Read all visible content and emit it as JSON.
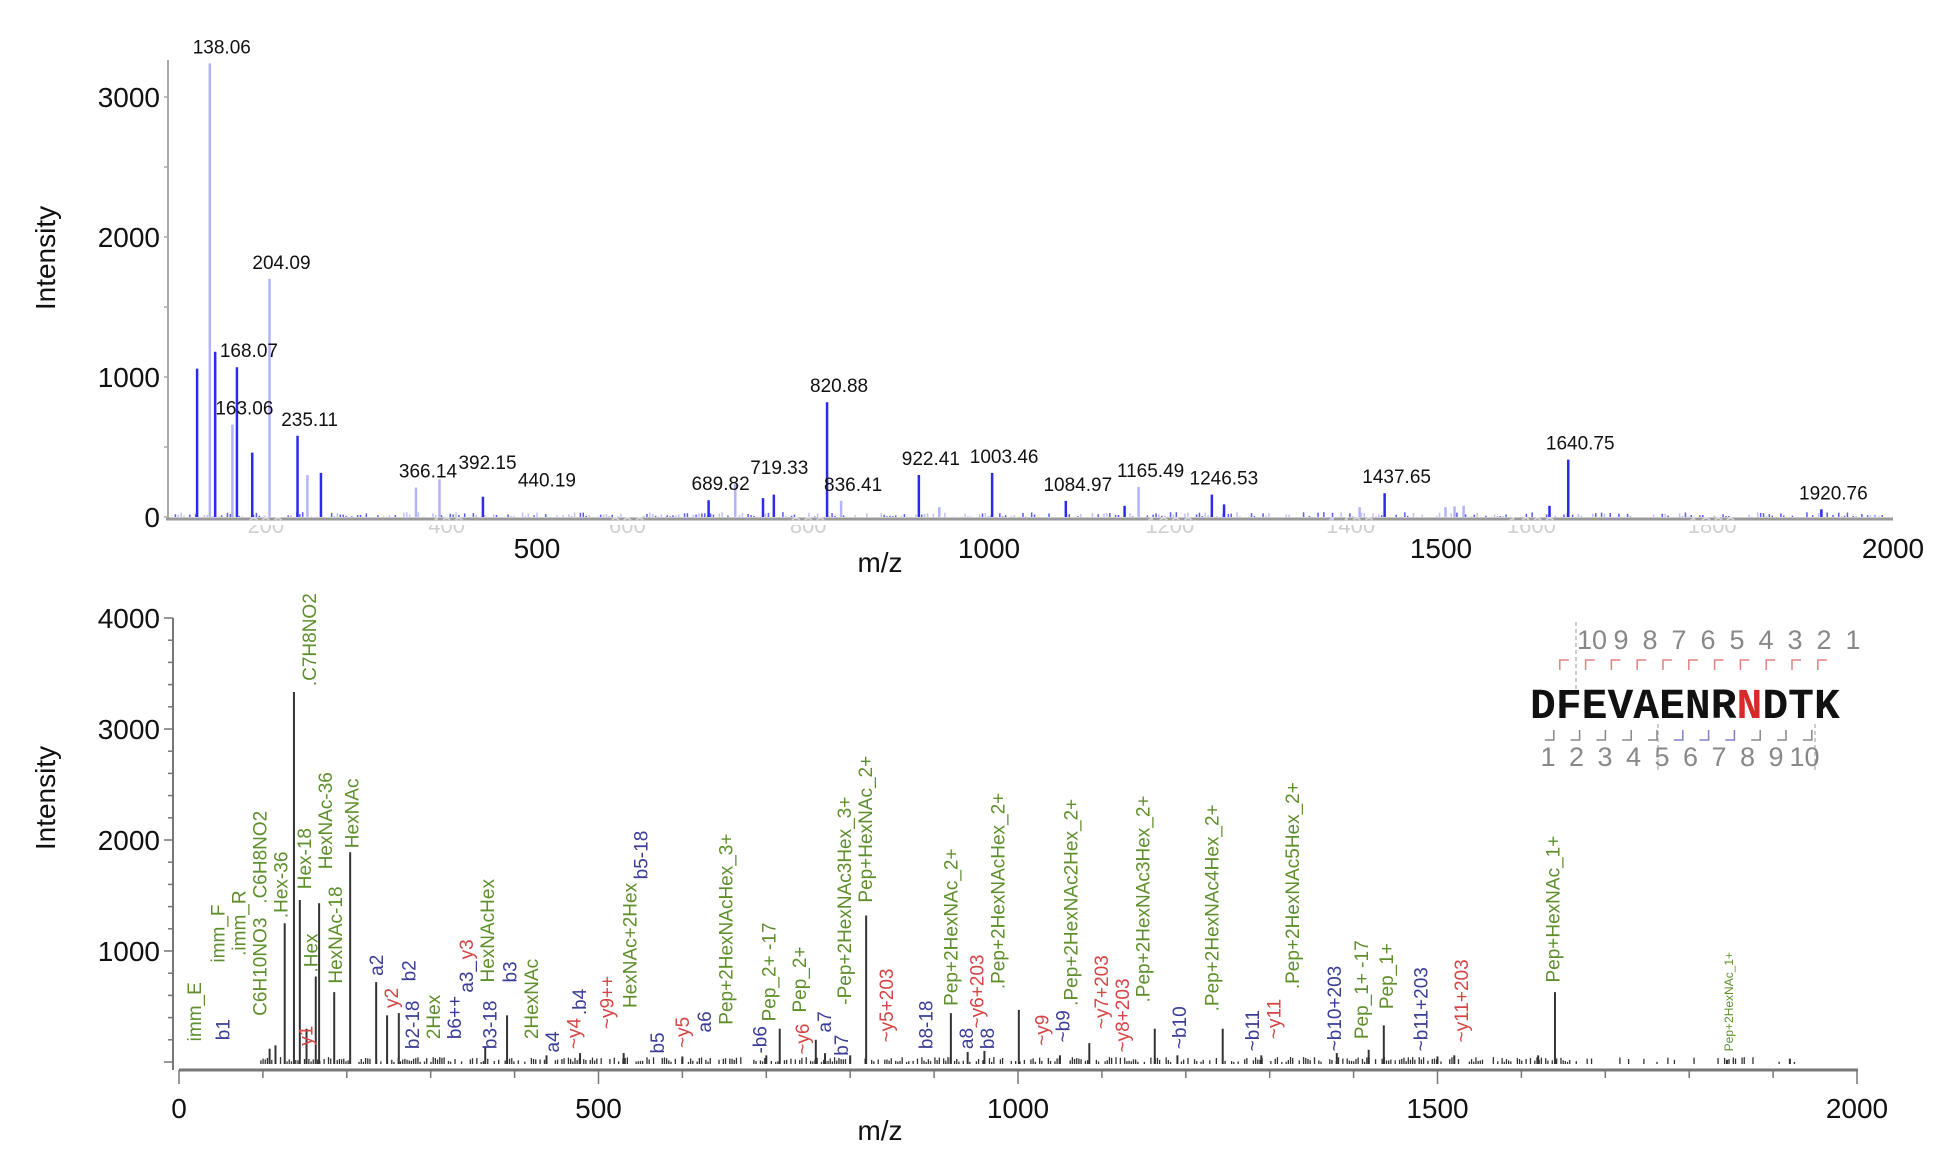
{
  "chart_data": [
    {
      "type": "bar",
      "title": "",
      "xlabel": "m/z",
      "ylabel": "Intensity",
      "xlim": [
        92,
        2000
      ],
      "ylim": [
        0,
        3250
      ],
      "xticks": [
        "500",
        "1000",
        "1500",
        "2000"
      ],
      "xtick_values": [
        500,
        1000,
        1500,
        2000
      ],
      "faint_xticks": [
        "200",
        "400",
        "600",
        "800",
        "1200",
        "1400",
        "1600",
        "1800"
      ],
      "faint_xtick_values": [
        200,
        400,
        600,
        800,
        1200,
        1400,
        1600,
        1800
      ],
      "yticks": [
        "0",
        "1000",
        "2000",
        "3000"
      ],
      "ytick_values": [
        0,
        1000,
        2000,
        3000
      ],
      "series_colors": {
        "dark": "#2b2bf0",
        "light": "#b3b3fb"
      },
      "peaks": [
        [
          124,
          1060,
          "dark"
        ],
        [
          138.06,
          3240,
          "light"
        ],
        [
          144,
          1180,
          "dark"
        ],
        [
          163.06,
          660,
          "light"
        ],
        [
          168.07,
          1070,
          "dark"
        ],
        [
          185,
          460,
          "dark"
        ],
        [
          204.09,
          1700,
          "light"
        ],
        [
          235.11,
          580,
          "dark"
        ],
        [
          246,
          300,
          "light"
        ],
        [
          261,
          315,
          "dark"
        ],
        [
          366.14,
          210,
          "light"
        ],
        [
          392.15,
          270,
          "light"
        ],
        [
          440.19,
          145,
          "dark"
        ],
        [
          689.82,
          120,
          "dark"
        ],
        [
          719.33,
          235,
          "light"
        ],
        [
          750,
          135,
          "dark"
        ],
        [
          762,
          160,
          "dark"
        ],
        [
          820.88,
          820,
          "dark"
        ],
        [
          836.41,
          115,
          "light"
        ],
        [
          922.41,
          300,
          "dark"
        ],
        [
          945,
          70,
          "light"
        ],
        [
          1003.46,
          315,
          "dark"
        ],
        [
          1084.97,
          115,
          "dark"
        ],
        [
          1150,
          80,
          "dark"
        ],
        [
          1165.49,
          215,
          "light"
        ],
        [
          1246.53,
          160,
          "dark"
        ],
        [
          1260,
          90,
          "dark"
        ],
        [
          1410,
          70,
          "light"
        ],
        [
          1437.65,
          170,
          "dark"
        ],
        [
          1505,
          70,
          "light"
        ],
        [
          1515,
          75,
          "light"
        ],
        [
          1525,
          80,
          "light"
        ],
        [
          1620,
          80,
          "dark"
        ],
        [
          1640.75,
          410,
          "dark"
        ],
        [
          1920.76,
          55,
          "dark"
        ],
        [
          1980,
          15,
          "light"
        ]
      ],
      "peak_labels": [
        {
          "text": "138.06",
          "mz": 138.06,
          "y": 3240
        },
        {
          "text": "204.09",
          "mz": 204.09,
          "y": 1700
        },
        {
          "text": "168.07",
          "mz": 168.07,
          "y": 1070
        },
        {
          "text": "163.06",
          "mz": 163.06,
          "y": 660
        },
        {
          "text": "235.11",
          "mz": 235.11,
          "y": 580
        },
        {
          "text": "366.14",
          "mz": 366.14,
          "y": 210
        },
        {
          "text": "392.15",
          "mz": 392.15,
          "y": 270
        },
        {
          "text": "440.19",
          "mz": 440.19,
          "y": 145
        },
        {
          "text": "689.82",
          "mz": 689.82,
          "y": 120
        },
        {
          "text": "719.33",
          "mz": 719.33,
          "y": 235
        },
        {
          "text": "820.88",
          "mz": 820.88,
          "y": 820
        },
        {
          "text": "836.41",
          "mz": 836.41,
          "y": 115
        },
        {
          "text": "922.41",
          "mz": 922.41,
          "y": 300
        },
        {
          "text": "1003.46",
          "mz": 1003.46,
          "y": 315
        },
        {
          "text": "1084.97",
          "mz": 1084.97,
          "y": 115
        },
        {
          "text": "1165.49",
          "mz": 1165.49,
          "y": 215
        },
        {
          "text": "1246.53",
          "mz": 1246.53,
          "y": 160
        },
        {
          "text": "1437.65",
          "mz": 1437.65,
          "y": 170
        },
        {
          "text": "1640.75",
          "mz": 1640.75,
          "y": 410
        },
        {
          "text": "1920.76",
          "mz": 1920.76,
          "y": 55
        }
      ]
    },
    {
      "type": "bar",
      "title": "",
      "xlabel": "m/z",
      "ylabel": "Intensity",
      "xlim": [
        0,
        2000
      ],
      "ylim": [
        0,
        4000
      ],
      "xticks": [
        "0",
        "500",
        "1000",
        "1500",
        "2000"
      ],
      "xtick_values": [
        0,
        500,
        1000,
        1500,
        2000
      ],
      "yticks": [
        "1000",
        "2000",
        "3000",
        "4000"
      ],
      "ytick_values": [
        1000,
        2000,
        3000,
        4000
      ],
      "annotation_colors": {
        "glycan": "#5e8f2c",
        "b_a_ion": "#3b3d96",
        "y_ion": "#d64545"
      },
      "peaks": [
        [
          108,
          120
        ],
        [
          115,
          150
        ],
        [
          126,
          1250
        ],
        [
          137,
          3333
        ],
        [
          144,
          1460
        ],
        [
          152,
          300
        ],
        [
          163,
          770
        ],
        [
          167,
          1430
        ],
        [
          185,
          630
        ],
        [
          204,
          1890
        ],
        [
          235,
          720
        ],
        [
          248,
          420
        ],
        [
          262,
          440
        ],
        [
          365,
          140
        ],
        [
          391,
          420
        ],
        [
          438,
          60
        ],
        [
          478,
          80
        ],
        [
          530,
          80
        ],
        [
          600,
          50
        ],
        [
          700,
          60
        ],
        [
          716,
          300
        ],
        [
          759,
          200
        ],
        [
          770,
          80
        ],
        [
          800,
          60
        ],
        [
          819,
          1320
        ],
        [
          920,
          440
        ],
        [
          940,
          90
        ],
        [
          960,
          100
        ],
        [
          1001,
          470
        ],
        [
          1050,
          60
        ],
        [
          1085,
          170
        ],
        [
          1163,
          300
        ],
        [
          1190,
          60
        ],
        [
          1244,
          300
        ],
        [
          1290,
          60
        ],
        [
          1380,
          80
        ],
        [
          1418,
          110
        ],
        [
          1436,
          330
        ],
        [
          1500,
          50
        ],
        [
          1520,
          60
        ],
        [
          1620,
          60
        ],
        [
          1640,
          630
        ],
        [
          1845,
          20
        ],
        [
          1920,
          30
        ]
      ],
      "annotations": [
        {
          "text": "imm_E",
          "type": "g",
          "mz": 19,
          "y": 150
        },
        {
          "text": "b1",
          "type": "b",
          "mz": 53,
          "y": 160
        },
        {
          "text": "imm_F",
          "type": "g",
          "mz": 47,
          "y": 860
        },
        {
          "text": ".imm_R",
          "type": "g",
          "mz": 70,
          "y": 920
        },
        {
          "text": "C6H10NO3",
          "type": "g",
          "mz": 91,
          "y": 380
        },
        {
          "text": ".C6H8NO2",
          "type": "g",
          "mz": 89,
          "y": 1390
        },
        {
          "text": ".Hex-36",
          "type": "g",
          "mz": 120,
          "y": 1260
        },
        {
          "text": "y1",
          "type": "r",
          "mz": 152,
          "y": 110
        },
        {
          "text": ".C7H8NO2",
          "type": "g",
          "mz": 156,
          "y": 3350
        },
        {
          "text": "Hex-18",
          "type": "g",
          "mz": 150,
          "y": 1520
        },
        {
          "text": ".Hex",
          "type": "g",
          "mz": 158,
          "y": 770
        },
        {
          "text": "HexNAc-36",
          "type": "g",
          "mz": 174,
          "y": 1700
        },
        {
          "text": "HexNAc-18",
          "type": "g",
          "mz": 187,
          "y": 670
        },
        {
          "text": "HexNAc",
          "type": "g",
          "mz": 207,
          "y": 1890
        },
        {
          "text": "a2",
          "type": "b",
          "mz": 236,
          "y": 740
        },
        {
          "text": "y2",
          "type": "r",
          "mz": 254,
          "y": 450
        },
        {
          "text": "b2",
          "type": "b",
          "mz": 275,
          "y": 690
        },
        {
          "text": "b2-18",
          "type": "b",
          "mz": 279,
          "y": 80
        },
        {
          "text": "2Hex",
          "type": "g",
          "mz": 303,
          "y": 170
        },
        {
          "text": "b6++",
          "type": "b",
          "mz": 323,
          "y": 170
        },
        {
          "text": "a3_",
          "type": "b",
          "mz": 343,
          "y": 120
        },
        {
          "text": "y3",
          "type": "r",
          "mz": 343,
          "y": 420
        },
        {
          "text": "HexNAcHex",
          "type": "g",
          "mz": 361,
          "y": 680
        },
        {
          "text": "b3-18",
          "type": "b",
          "mz": 371,
          "y": 80
        },
        {
          "text": "b3",
          "type": "b",
          "mz": 395,
          "y": 680
        },
        {
          "text": "2HexNAc",
          "type": "g",
          "mz": 421,
          "y": 170
        },
        {
          "text": "a4",
          "type": "b",
          "mz": 440,
          "y": 50
        },
        {
          "text": "~y4",
          "type": "r",
          "mz": 462,
          "y": 80
        },
        {
          "text": ".b4",
          "type": "b",
          "mz": 478,
          "y": 170
        },
        {
          "text": "~y9++",
          "type": "r",
          "mz": 511,
          "y": 260
        },
        {
          "text": "HexNAc+2Hex",
          "type": "g",
          "mz": 538,
          "y": 450
        },
        {
          "text": "b5-18",
          "type": "b",
          "mz": 551,
          "y": 60
        },
        {
          "text": "b5",
          "type": "b",
          "mz": 571,
          "y": 40
        },
        {
          "text": "~y5",
          "type": "r",
          "mz": 601,
          "y": 90
        },
        {
          "text": "a6",
          "type": "b",
          "mz": 627,
          "y": 230
        },
        {
          "text": "Pep+2HexNAcHex_3+",
          "type": "g",
          "mz": 643,
          "y": 300
        },
        {
          "text": "-b6",
          "type": "b",
          "mz": 693,
          "y": 40
        },
        {
          "text": "Pep_2+ -17",
          "type": "g",
          "mz": 704,
          "y": 330
        },
        {
          "text": "~y6",
          "type": "r",
          "mz": 744,
          "y": 30
        },
        {
          "text": "Pep_2+",
          "type": "g",
          "mz": 740,
          "y": 410
        },
        {
          "text": "a7",
          "type": "b",
          "mz": 770,
          "y": 230
        },
        {
          "text": "b7",
          "type": "b",
          "mz": 790,
          "y": 20
        },
        {
          "text": "-Pep+2HexNAc3Hex_3+",
          "type": "g",
          "mz": 794,
          "y": 480
        },
        {
          "text": "Pep+HexNAc_2+",
          "type": "g",
          "mz": 815,
          "y": 1400
        },
        {
          "text": "~y5+203",
          "type": "r",
          "mz": 844,
          "y": 140
        },
        {
          "text": "b8-18",
          "type": "b",
          "mz": 891,
          "y": 80
        },
        {
          "text": "Pep+2HexNAc_2+",
          "type": "g",
          "mz": 921,
          "y": 470
        },
        {
          "text": "a8",
          "type": "b",
          "mz": 939,
          "y": 80
        },
        {
          "text": "~y6+203",
          "type": "r",
          "mz": 952,
          "y": 230
        },
        {
          "text": "b8",
          "type": "b",
          "mz": 963,
          "y": 80
        },
        {
          "text": ".Pep+2HexNAcHex_2+",
          "type": "g",
          "mz": 967,
          "y": 620
        },
        {
          "text": "~y9",
          "type": "r",
          "mz": 1029,
          "y": 110
        },
        {
          "text": "~b9",
          "type": "b",
          "mz": 1046,
          "y": 140
        },
        {
          "text": ".Pep+2HexNAc2Hex_2+",
          "type": "g",
          "mz": 1064,
          "y": 470
        },
        {
          "text": "~y7+203",
          "type": "r",
          "mz": 1100,
          "y": 260
        },
        {
          "text": "~y8+203",
          "type": "r",
          "mz": 1125,
          "y": 50
        },
        {
          "text": ".Pep+2HexNAc3Hex_2+",
          "type": "g",
          "mz": 1145,
          "y": 500
        },
        {
          "text": "~b10",
          "type": "b",
          "mz": 1193,
          "y": 80
        },
        {
          "text": ".Pep+2HexNAc4Hex_2+",
          "type": "g",
          "mz": 1232,
          "y": 420
        },
        {
          "text": "~b11",
          "type": "b",
          "mz": 1280,
          "y": 60
        },
        {
          "text": "~y11",
          "type": "r",
          "mz": 1306,
          "y": 170
        },
        {
          "text": ".Pep+2HexNAc5Hex_2+",
          "type": "g",
          "mz": 1328,
          "y": 620
        },
        {
          "text": "~b10+203",
          "type": "b",
          "mz": 1378,
          "y": 60
        },
        {
          "text": "Pep_1+ -17",
          "type": "g",
          "mz": 1410,
          "y": 170
        },
        {
          "text": "Pep_1+",
          "type": "g",
          "mz": 1440,
          "y": 440
        },
        {
          "text": "~b11+203",
          "type": "b",
          "mz": 1481,
          "y": 60
        },
        {
          "text": "~y11+203",
          "type": "r",
          "mz": 1529,
          "y": 140
        },
        {
          "text": "Pep+HexNAc_1+",
          "type": "g",
          "mz": 1638,
          "y": 680
        },
        {
          "text": "Pep+2HexNAc_1+",
          "type": "g",
          "mz": 1845,
          "y": 60,
          "small": true
        }
      ],
      "sequence": {
        "residues": [
          "D",
          "F",
          "E",
          "V",
          "A",
          "E",
          "N",
          "R",
          "N",
          "D",
          "T",
          "K"
        ],
        "highlight_index": 8,
        "highlight_color": "#d62a2a",
        "y_numbers": [
          "10",
          "9",
          "8",
          "7",
          "6",
          "5",
          "4",
          "3",
          "2",
          "1"
        ],
        "b_numbers": [
          "1",
          "2",
          "3",
          "4",
          "5",
          "6",
          "7",
          "8",
          "9",
          "10"
        ]
      }
    }
  ]
}
